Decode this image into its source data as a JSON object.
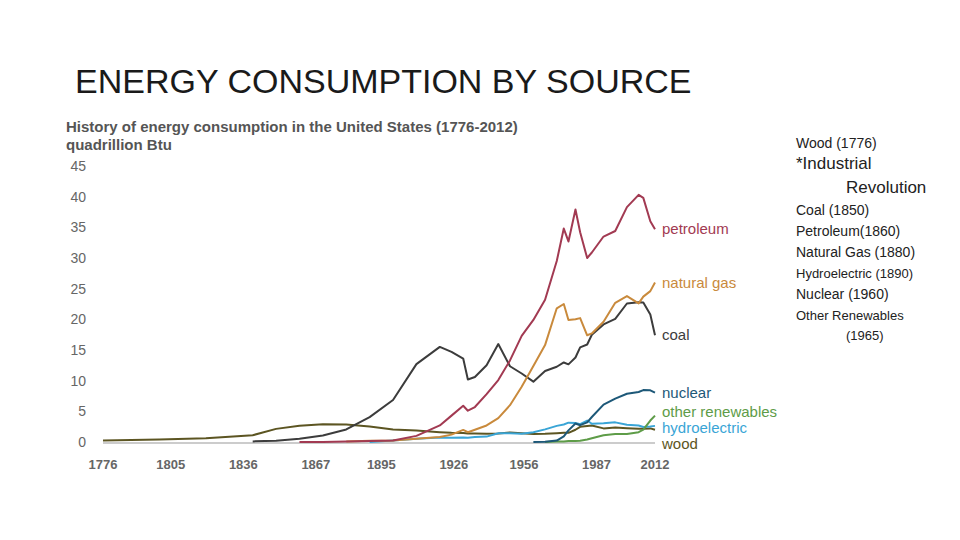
{
  "slide": {
    "title": "ENERGY CONSUMPTION BY SOURCE",
    "annotations": [
      "Wood (1776)",
      "*Industrial Revolution",
      "Coal (1850)",
      "Petroleum(1860)",
      "Natural Gas (1880)",
      "Hydroelectric (1890)",
      "Nuclear (1960)",
      "Other Renewables (1965)"
    ]
  },
  "chart_data": {
    "type": "line",
    "title": "History of energy consumption in the United States (1776-2012)",
    "y_label": "quadrillion Btu",
    "x": [
      1776,
      1800,
      1820,
      1840,
      1850,
      1860,
      1870,
      1880,
      1890,
      1900,
      1910,
      1920,
      1925,
      1930,
      1932,
      1935,
      1940,
      1945,
      1950,
      1955,
      1960,
      1965,
      1970,
      1973,
      1975,
      1978,
      1980,
      1983,
      1985,
      1990,
      1995,
      2000,
      2005,
      2007,
      2010,
      2012
    ],
    "series": [
      {
        "name": "petroleum",
        "color": "#a23a52",
        "values": [
          null,
          null,
          null,
          null,
          null,
          0.01,
          0.01,
          0.1,
          0.16,
          0.23,
          1.0,
          2.7,
          4.3,
          5.9,
          5.1,
          5.7,
          7.8,
          10.1,
          13.3,
          17.3,
          19.9,
          23.2,
          29.5,
          34.8,
          32.7,
          37.9,
          34.2,
          30.0,
          30.9,
          33.5,
          34.4,
          38.3,
          40.3,
          39.8,
          36.0,
          34.7
        ]
      },
      {
        "name": "natural gas",
        "color": "#c98a3c",
        "values": [
          null,
          null,
          null,
          null,
          null,
          null,
          null,
          0.1,
          0.2,
          0.25,
          0.54,
          0.81,
          1.2,
          1.97,
          1.6,
          2.0,
          2.7,
          3.9,
          6.0,
          9.0,
          12.4,
          15.8,
          21.8,
          22.5,
          19.9,
          20.0,
          20.2,
          17.4,
          17.7,
          19.6,
          22.7,
          23.8,
          22.6,
          23.7,
          24.6,
          26.0
        ]
      },
      {
        "name": "coal",
        "color": "#3c3c3c",
        "values": [
          null,
          null,
          null,
          0.1,
          0.22,
          0.52,
          1.05,
          2.05,
          4.06,
          6.84,
          12.7,
          15.5,
          14.7,
          13.6,
          10.2,
          10.6,
          12.5,
          15.97,
          12.35,
          11.17,
          9.84,
          11.58,
          12.27,
          12.97,
          12.66,
          13.77,
          15.42,
          15.89,
          17.48,
          19.17,
          20.09,
          22.58,
          22.8,
          22.75,
          20.8,
          17.4
        ]
      },
      {
        "name": "nuclear",
        "color": "#1d5878",
        "values": [
          null,
          null,
          null,
          null,
          null,
          null,
          null,
          null,
          null,
          null,
          null,
          null,
          null,
          null,
          null,
          null,
          null,
          null,
          null,
          null,
          0.01,
          0.04,
          0.24,
          0.91,
          1.9,
          3.02,
          2.74,
          3.2,
          4.08,
          6.1,
          7.08,
          7.86,
          8.16,
          8.46,
          8.43,
          8.06
        ]
      },
      {
        "name": "other renewables",
        "color": "#5e9c48",
        "values": [
          null,
          null,
          null,
          null,
          null,
          null,
          null,
          null,
          null,
          null,
          null,
          null,
          null,
          null,
          null,
          null,
          null,
          null,
          null,
          null,
          null,
          0.01,
          0.07,
          0.1,
          0.15,
          0.18,
          0.2,
          0.4,
          0.6,
          1.1,
          1.3,
          1.3,
          1.6,
          2.0,
          3.5,
          4.3
        ]
      },
      {
        "name": "hydroelectric",
        "color": "#3aa5d6",
        "values": [
          null,
          null,
          null,
          null,
          null,
          null,
          null,
          null,
          0.02,
          0.25,
          0.54,
          0.74,
          0.7,
          0.75,
          0.7,
          0.8,
          0.88,
          1.44,
          1.42,
          1.36,
          1.6,
          2.06,
          2.63,
          2.86,
          3.15,
          3.1,
          2.9,
          3.5,
          2.97,
          3.05,
          3.2,
          2.81,
          2.7,
          2.45,
          2.54,
          2.63
        ]
      },
      {
        "name": "wood",
        "color": "#5c5522",
        "values": [
          0.25,
          0.4,
          0.6,
          1.1,
          2.14,
          2.64,
          2.89,
          2.85,
          2.52,
          2.02,
          1.86,
          1.61,
          1.5,
          1.46,
          1.4,
          1.4,
          1.36,
          1.4,
          1.56,
          1.42,
          1.32,
          1.33,
          1.43,
          1.5,
          1.5,
          2.0,
          2.48,
          2.6,
          2.69,
          2.22,
          2.37,
          2.26,
          2.14,
          2.14,
          2.22,
          2.0
        ]
      }
    ],
    "xlim": [
      1776,
      2012
    ],
    "xticks": [
      1776,
      1805,
      1836,
      1867,
      1895,
      1926,
      1956,
      1987,
      2012
    ],
    "ylim": [
      0,
      45
    ],
    "yticks": [
      0,
      5,
      10,
      15,
      20,
      25,
      30,
      35,
      40,
      45
    ],
    "grid": false
  }
}
